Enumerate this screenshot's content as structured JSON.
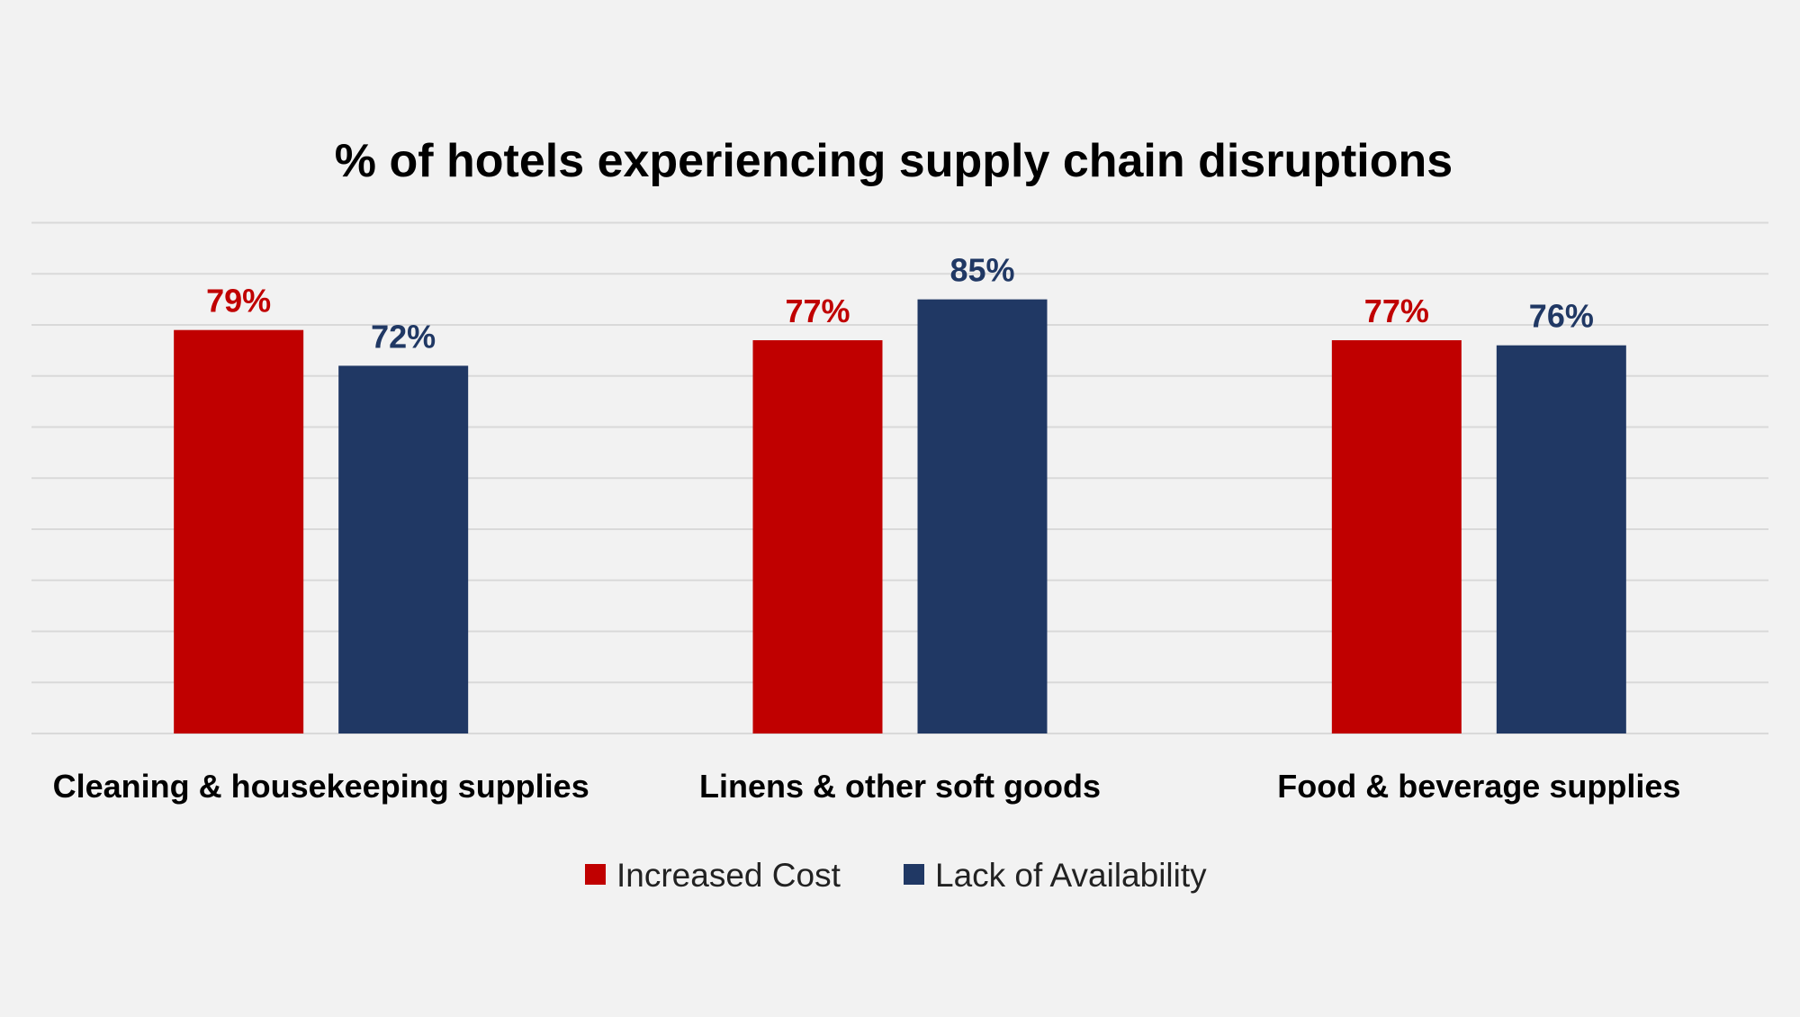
{
  "chart_data": {
    "type": "bar",
    "title": "% of hotels experiencing supply chain disruptions",
    "categories": [
      "Cleaning & housekeeping supplies",
      "Linens & other soft goods",
      "Food & beverage supplies"
    ],
    "series": [
      {
        "name": "Increased Cost",
        "color": "#c00000",
        "values": [
          79,
          77,
          77
        ]
      },
      {
        "name": "Lack of Availability",
        "color": "#203864",
        "values": [
          72,
          85,
          76
        ]
      }
    ],
    "data_labels": [
      [
        "79%",
        "77%",
        "77%"
      ],
      [
        "72%",
        "85%",
        "76%"
      ]
    ],
    "ylim": [
      0,
      100
    ],
    "grid": true,
    "legend": "bottom",
    "colors": {
      "background": "#f2f2f2",
      "gridline": "#d9d9d9",
      "text": "#000000"
    }
  }
}
